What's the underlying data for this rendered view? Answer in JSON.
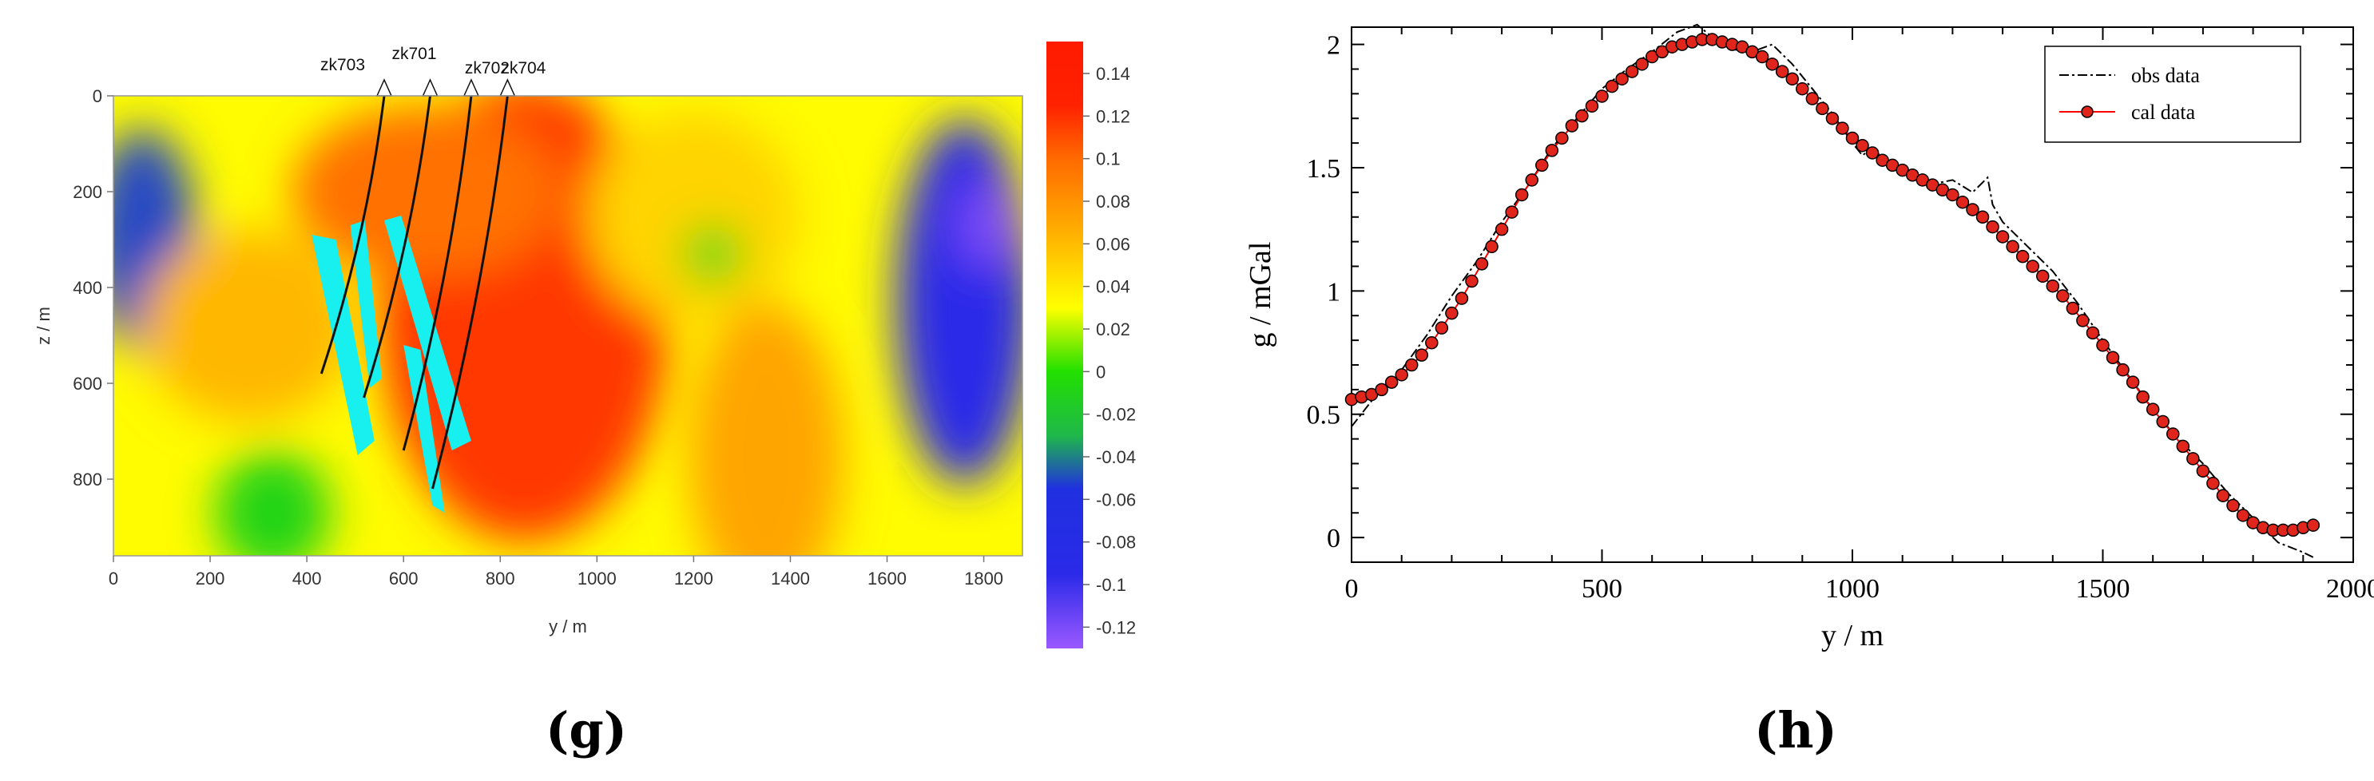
{
  "chart_data": [
    {
      "type": "heatmap",
      "panel_label": "(g)",
      "xlabel": "y / m",
      "ylabel": "z / m",
      "xlim": [
        0,
        1880
      ],
      "ylim": [
        0,
        960
      ],
      "x_ticks": [
        "0",
        "200",
        "400",
        "600",
        "800",
        "1000",
        "1200",
        "1400",
        "1600",
        "1800"
      ],
      "y_ticks": [
        "0",
        "200",
        "400",
        "600",
        "800"
      ],
      "colorbar": {
        "range": [
          -0.13,
          0.155
        ],
        "ticks": [
          "0.14",
          "0.12",
          "0.1",
          "0.08",
          "0.06",
          "0.04",
          "0.02",
          "0",
          "-0.02",
          "-0.04",
          "-0.06",
          "-0.08",
          "-0.1",
          "-0.12"
        ],
        "colors": [
          "#9b59ff",
          "#2a2ae8",
          "#1fb84a",
          "#22e000",
          "#ffff00",
          "#ffb000",
          "#ff6a00",
          "#ff1a00"
        ]
      },
      "drillholes": [
        {
          "name": "zk703",
          "top": [
            560,
            0
          ],
          "bottom": [
            430,
            580
          ]
        },
        {
          "name": "zk701",
          "top": [
            655,
            0
          ],
          "bottom": [
            518,
            630
          ]
        },
        {
          "name": "zk702",
          "top": [
            740,
            0
          ],
          "bottom": [
            600,
            740
          ]
        },
        {
          "name": "zk704",
          "top": [
            815,
            0
          ],
          "bottom": [
            660,
            820
          ]
        }
      ],
      "ore_bodies": [
        [
          [
            410,
            290
          ],
          [
            460,
            300
          ],
          [
            540,
            720
          ],
          [
            505,
            750
          ]
        ],
        [
          [
            490,
            270
          ],
          [
            520,
            260
          ],
          [
            555,
            590
          ],
          [
            530,
            610
          ]
        ],
        [
          [
            560,
            260
          ],
          [
            595,
            250
          ],
          [
            740,
            720
          ],
          [
            700,
            740
          ]
        ],
        [
          [
            600,
            520
          ],
          [
            635,
            530
          ],
          [
            685,
            870
          ],
          [
            660,
            855
          ]
        ]
      ],
      "field_blobs": [
        {
          "x": 850,
          "z": 450,
          "rx": 300,
          "rz": 480,
          "v": 0.14
        },
        {
          "x": 650,
          "z": 200,
          "rx": 280,
          "rz": 180,
          "v": 0.11
        },
        {
          "x": 1350,
          "z": 750,
          "rx": 160,
          "rz": 320,
          "v": 0.08
        },
        {
          "x": 1200,
          "z": 250,
          "rx": 220,
          "rz": 220,
          "v": 0.055
        },
        {
          "x": 1240,
          "z": 330,
          "rx": 60,
          "rz": 60,
          "v": -0.015
        },
        {
          "x": 60,
          "z": 300,
          "rx": 110,
          "rz": 230,
          "v": -0.08
        },
        {
          "x": 1760,
          "z": 430,
          "rx": 140,
          "rz": 380,
          "v": -0.09
        },
        {
          "x": 1810,
          "z": 270,
          "rx": 60,
          "rz": 90,
          "v": -0.12
        },
        {
          "x": 330,
          "z": 870,
          "rx": 120,
          "rz": 130,
          "v": -0.02
        },
        {
          "x": 280,
          "z": 480,
          "rx": 220,
          "rz": 200,
          "v": 0.07
        }
      ]
    },
    {
      "type": "line",
      "panel_label": "(h)",
      "xlabel": "y / m",
      "ylabel": "g / mGal",
      "xlim": [
        0,
        2000
      ],
      "ylim": [
        -0.1,
        2.07
      ],
      "x_ticks": [
        0,
        500,
        1000,
        1500,
        2000
      ],
      "y_ticks": [
        "0",
        "0.5",
        "1",
        "1.5",
        "2"
      ],
      "legend": {
        "position": "top-right",
        "entries": [
          "obs data",
          "cal data"
        ]
      },
      "series": [
        {
          "name": "obs data",
          "style": "dash-dot",
          "color": "#000000",
          "x": [
            0,
            50,
            100,
            150,
            200,
            250,
            300,
            350,
            400,
            450,
            500,
            550,
            600,
            650,
            690,
            720,
            760,
            800,
            840,
            880,
            920,
            960,
            1000,
            1020,
            1040,
            1060,
            1100,
            1150,
            1200,
            1240,
            1270,
            1280,
            1300,
            1350,
            1400,
            1450,
            1500,
            1550,
            1600,
            1650,
            1700,
            1750,
            1800,
            1850,
            1900,
            1920
          ],
          "y": [
            0.45,
            0.58,
            0.68,
            0.82,
            0.98,
            1.12,
            1.28,
            1.42,
            1.58,
            1.7,
            1.82,
            1.9,
            1.97,
            2.05,
            2.08,
            2.03,
            1.98,
            1.97,
            2.0,
            1.92,
            1.82,
            1.72,
            1.6,
            1.55,
            1.58,
            1.54,
            1.48,
            1.43,
            1.45,
            1.4,
            1.46,
            1.35,
            1.28,
            1.18,
            1.08,
            0.95,
            0.8,
            0.66,
            0.52,
            0.4,
            0.3,
            0.18,
            0.08,
            -0.02,
            -0.06,
            -0.08
          ]
        },
        {
          "name": "cal data",
          "style": "solid-marker",
          "color": "#ff0000",
          "x": [
            0,
            20,
            40,
            60,
            80,
            100,
            120,
            140,
            160,
            180,
            200,
            220,
            240,
            260,
            280,
            300,
            320,
            340,
            360,
            380,
            400,
            420,
            440,
            460,
            480,
            500,
            520,
            540,
            560,
            580,
            600,
            620,
            640,
            660,
            680,
            700,
            720,
            740,
            760,
            780,
            800,
            820,
            840,
            860,
            880,
            900,
            920,
            940,
            960,
            980,
            1000,
            1020,
            1040,
            1060,
            1080,
            1100,
            1120,
            1140,
            1160,
            1180,
            1200,
            1220,
            1240,
            1260,
            1280,
            1300,
            1320,
            1340,
            1360,
            1380,
            1400,
            1420,
            1440,
            1460,
            1480,
            1500,
            1520,
            1540,
            1560,
            1580,
            1600,
            1620,
            1640,
            1660,
            1680,
            1700,
            1720,
            1740,
            1760,
            1780,
            1800,
            1820,
            1840,
            1860,
            1880,
            1900,
            1920
          ],
          "y": [
            0.56,
            0.57,
            0.58,
            0.6,
            0.63,
            0.66,
            0.7,
            0.74,
            0.79,
            0.85,
            0.91,
            0.97,
            1.04,
            1.11,
            1.18,
            1.25,
            1.32,
            1.39,
            1.45,
            1.51,
            1.57,
            1.62,
            1.67,
            1.71,
            1.75,
            1.79,
            1.83,
            1.86,
            1.89,
            1.92,
            1.95,
            1.97,
            1.99,
            2.0,
            2.01,
            2.02,
            2.02,
            2.01,
            2.0,
            1.99,
            1.97,
            1.95,
            1.92,
            1.89,
            1.86,
            1.82,
            1.78,
            1.74,
            1.7,
            1.66,
            1.62,
            1.59,
            1.56,
            1.53,
            1.51,
            1.49,
            1.47,
            1.45,
            1.43,
            1.41,
            1.39,
            1.36,
            1.33,
            1.3,
            1.26,
            1.22,
            1.18,
            1.14,
            1.1,
            1.06,
            1.02,
            0.98,
            0.93,
            0.88,
            0.83,
            0.78,
            0.73,
            0.68,
            0.63,
            0.57,
            0.52,
            0.47,
            0.42,
            0.37,
            0.32,
            0.27,
            0.22,
            0.17,
            0.13,
            0.09,
            0.06,
            0.04,
            0.03,
            0.03,
            0.03,
            0.04,
            0.05
          ]
        }
      ]
    }
  ]
}
